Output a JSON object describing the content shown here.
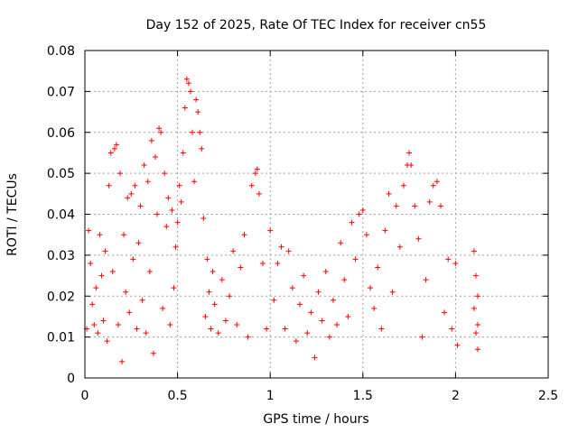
{
  "chart_data": {
    "type": "scatter",
    "title": "Day 152 of 2025, Rate Of TEC Index for receiver cn55",
    "xlabel": "GPS time / hours",
    "ylabel": "ROTI / TECUs",
    "xlim": [
      0,
      2.5
    ],
    "ylim": [
      0,
      0.08
    ],
    "xticks": [
      0,
      0.5,
      1,
      1.5,
      2,
      2.5
    ],
    "xtick_labels": [
      "0",
      "0.5",
      "1",
      "1.5",
      "2",
      "2.5"
    ],
    "yticks": [
      0,
      0.01,
      0.02,
      0.03,
      0.04,
      0.05,
      0.06,
      0.07,
      0.08
    ],
    "ytick_labels": [
      "0",
      "0.01",
      "0.02",
      "0.03",
      "0.04",
      "0.05",
      "0.06",
      "0.07",
      "0.08"
    ],
    "grid": true,
    "marker": "+",
    "color": "#ff0000",
    "series": [
      {
        "name": "ROTI",
        "points": [
          [
            0.01,
            0.012
          ],
          [
            0.02,
            0.036
          ],
          [
            0.03,
            0.028
          ],
          [
            0.04,
            0.018
          ],
          [
            0.05,
            0.013
          ],
          [
            0.06,
            0.022
          ],
          [
            0.07,
            0.011
          ],
          [
            0.08,
            0.035
          ],
          [
            0.09,
            0.025
          ],
          [
            0.1,
            0.014
          ],
          [
            0.11,
            0.031
          ],
          [
            0.12,
            0.009
          ],
          [
            0.13,
            0.047
          ],
          [
            0.14,
            0.055
          ],
          [
            0.15,
            0.026
          ],
          [
            0.16,
            0.056
          ],
          [
            0.17,
            0.057
          ],
          [
            0.18,
            0.013
          ],
          [
            0.19,
            0.05
          ],
          [
            0.2,
            0.004
          ],
          [
            0.21,
            0.035
          ],
          [
            0.22,
            0.021
          ],
          [
            0.23,
            0.044
          ],
          [
            0.24,
            0.016
          ],
          [
            0.25,
            0.045
          ],
          [
            0.26,
            0.029
          ],
          [
            0.27,
            0.047
          ],
          [
            0.28,
            0.012
          ],
          [
            0.29,
            0.033
          ],
          [
            0.3,
            0.042
          ],
          [
            0.31,
            0.019
          ],
          [
            0.32,
            0.052
          ],
          [
            0.33,
            0.011
          ],
          [
            0.34,
            0.048
          ],
          [
            0.35,
            0.026
          ],
          [
            0.36,
            0.058
          ],
          [
            0.37,
            0.006
          ],
          [
            0.38,
            0.054
          ],
          [
            0.39,
            0.04
          ],
          [
            0.4,
            0.061
          ],
          [
            0.41,
            0.06
          ],
          [
            0.42,
            0.017
          ],
          [
            0.43,
            0.05
          ],
          [
            0.44,
            0.037
          ],
          [
            0.45,
            0.044
          ],
          [
            0.46,
            0.013
          ],
          [
            0.47,
            0.041
          ],
          [
            0.48,
            0.022
          ],
          [
            0.49,
            0.032
          ],
          [
            0.5,
            0.038
          ],
          [
            0.51,
            0.047
          ],
          [
            0.52,
            0.043
          ],
          [
            0.53,
            0.055
          ],
          [
            0.54,
            0.066
          ],
          [
            0.55,
            0.073
          ],
          [
            0.56,
            0.072
          ],
          [
            0.57,
            0.07
          ],
          [
            0.58,
            0.06
          ],
          [
            0.59,
            0.048
          ],
          [
            0.6,
            0.068
          ],
          [
            0.61,
            0.065
          ],
          [
            0.62,
            0.06
          ],
          [
            0.63,
            0.056
          ],
          [
            0.64,
            0.039
          ],
          [
            0.65,
            0.015
          ],
          [
            0.66,
            0.029
          ],
          [
            0.67,
            0.021
          ],
          [
            0.68,
            0.012
          ],
          [
            0.69,
            0.026
          ],
          [
            0.7,
            0.018
          ],
          [
            0.72,
            0.011
          ],
          [
            0.74,
            0.024
          ],
          [
            0.76,
            0.014
          ],
          [
            0.78,
            0.02
          ],
          [
            0.8,
            0.031
          ],
          [
            0.82,
            0.013
          ],
          [
            0.84,
            0.027
          ],
          [
            0.86,
            0.035
          ],
          [
            0.88,
            0.01
          ],
          [
            0.9,
            0.047
          ],
          [
            0.92,
            0.05
          ],
          [
            0.93,
            0.051
          ],
          [
            0.94,
            0.045
          ],
          [
            0.96,
            0.028
          ],
          [
            0.98,
            0.012
          ],
          [
            1.0,
            0.036
          ],
          [
            1.02,
            0.019
          ],
          [
            1.04,
            0.028
          ],
          [
            1.06,
            0.032
          ],
          [
            1.08,
            0.012
          ],
          [
            1.1,
            0.031
          ],
          [
            1.12,
            0.022
          ],
          [
            1.14,
            0.009
          ],
          [
            1.16,
            0.018
          ],
          [
            1.18,
            0.025
          ],
          [
            1.2,
            0.011
          ],
          [
            1.22,
            0.016
          ],
          [
            1.24,
            0.005
          ],
          [
            1.26,
            0.021
          ],
          [
            1.28,
            0.014
          ],
          [
            1.3,
            0.026
          ],
          [
            1.32,
            0.01
          ],
          [
            1.34,
            0.019
          ],
          [
            1.36,
            0.013
          ],
          [
            1.38,
            0.033
          ],
          [
            1.4,
            0.024
          ],
          [
            1.42,
            0.015
          ],
          [
            1.44,
            0.038
          ],
          [
            1.46,
            0.029
          ],
          [
            1.48,
            0.04
          ],
          [
            1.5,
            0.041
          ],
          [
            1.52,
            0.035
          ],
          [
            1.54,
            0.022
          ],
          [
            1.56,
            0.017
          ],
          [
            1.58,
            0.027
          ],
          [
            1.6,
            0.012
          ],
          [
            1.62,
            0.036
          ],
          [
            1.64,
            0.045
          ],
          [
            1.66,
            0.021
          ],
          [
            1.68,
            0.042
          ],
          [
            1.7,
            0.032
          ],
          [
            1.72,
            0.047
          ],
          [
            1.74,
            0.052
          ],
          [
            1.75,
            0.055
          ],
          [
            1.76,
            0.052
          ],
          [
            1.78,
            0.042
          ],
          [
            1.8,
            0.034
          ],
          [
            1.82,
            0.01
          ],
          [
            1.84,
            0.024
          ],
          [
            1.86,
            0.043
          ],
          [
            1.88,
            0.047
          ],
          [
            1.9,
            0.048
          ],
          [
            1.92,
            0.042
          ],
          [
            1.94,
            0.016
          ],
          [
            1.96,
            0.029
          ],
          [
            1.98,
            0.012
          ],
          [
            2.0,
            0.028
          ],
          [
            2.01,
            0.008
          ],
          [
            2.1,
            0.031
          ],
          [
            2.11,
            0.025
          ],
          [
            2.12,
            0.02
          ],
          [
            2.12,
            0.013
          ],
          [
            2.11,
            0.011
          ],
          [
            2.12,
            0.007
          ],
          [
            2.1,
            0.017
          ]
        ]
      }
    ]
  }
}
